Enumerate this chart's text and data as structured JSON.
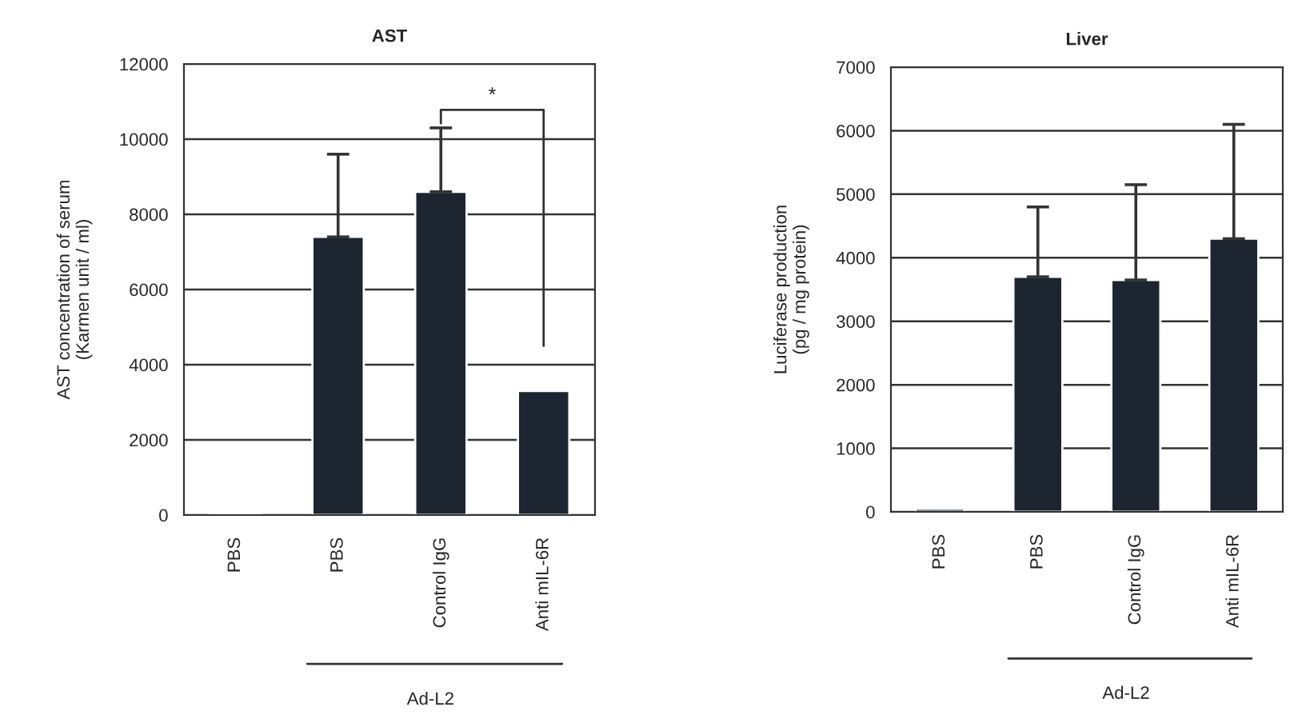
{
  "chart_data": [
    {
      "type": "bar",
      "title": "AST",
      "ylabel": "AST concentration of serum\n(Karmen unit / ml)",
      "categories": [
        "PBS",
        "PBS",
        "Control IgG",
        "Anti mIL-6R"
      ],
      "series": [
        {
          "color": "#1c2530",
          "values": [
            50,
            7400,
            8600,
            3300
          ],
          "errors": [
            null,
            2200,
            1700,
            null
          ]
        }
      ],
      "ylim": [
        0,
        12000
      ],
      "yticks": [
        0,
        2000,
        4000,
        6000,
        8000,
        10000,
        12000
      ],
      "grid": "y",
      "legend": false,
      "annotations": [
        "*",
        "Ad-L2"
      ]
    },
    {
      "type": "bar",
      "title": "Liver",
      "ylabel": "Luciferase production\n(pg / mg protein)",
      "categories": [
        "PBS",
        "PBS",
        "Control IgG",
        "Anti mIL-6R"
      ],
      "series": [
        {
          "color": "#1c2530",
          "values": [
            50,
            3700,
            3650,
            4300
          ],
          "errors": [
            null,
            1100,
            1500,
            1800
          ]
        }
      ],
      "ylim": [
        0,
        7000
      ],
      "yticks": [
        0,
        1000,
        2000,
        3000,
        4000,
        5000,
        6000,
        7000
      ],
      "grid": "y",
      "legend": false,
      "annotations": [
        "Ad-L2"
      ]
    }
  ]
}
